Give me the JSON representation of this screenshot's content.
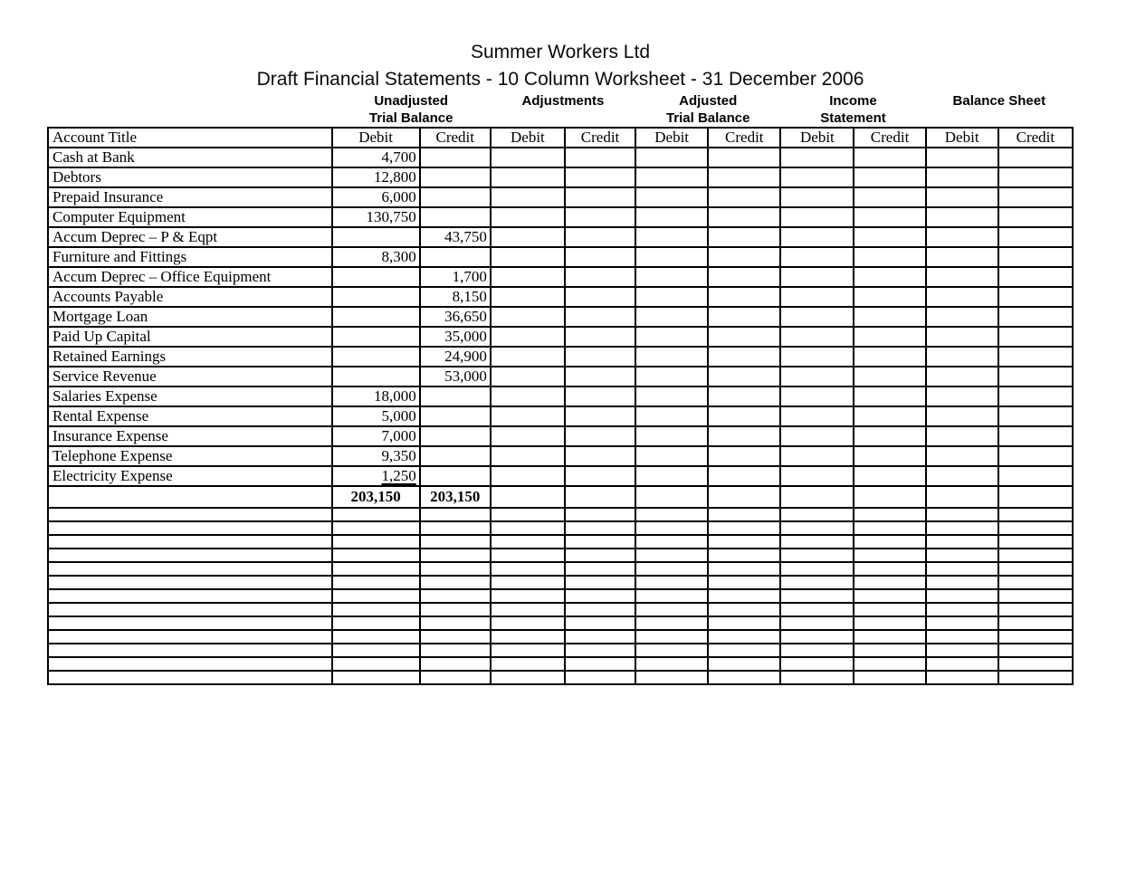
{
  "page": {
    "title": "Summer Workers Ltd",
    "subtitle": "Draft Financial Statements - 10 Column Worksheet - 31 December 2006"
  },
  "worksheet": {
    "section_headers": [
      {
        "line1": "Unadjusted",
        "line2": "Trial Balance"
      },
      {
        "line1": "Adjustments",
        "line2": ""
      },
      {
        "line1": "Adjusted",
        "line2": "Trial Balance"
      },
      {
        "line1": "Income",
        "line2": "Statement"
      },
      {
        "line1": "Balance Sheet",
        "line2": ""
      }
    ],
    "account_title_header": "Account Title",
    "column_headers": [
      "Debit",
      "Credit",
      "Debit",
      "Credit",
      "Debit",
      "Credit",
      "Debit",
      "Credit",
      "Debit",
      "Credit"
    ],
    "rows": [
      {
        "account": "Cash at Bank",
        "cells": [
          "4,700",
          "",
          "",
          "",
          "",
          "",
          "",
          "",
          "",
          ""
        ]
      },
      {
        "account": "Debtors",
        "cells": [
          "12,800",
          "",
          "",
          "",
          "",
          "",
          "",
          "",
          "",
          ""
        ]
      },
      {
        "account": "Prepaid Insurance",
        "cells": [
          "6,000",
          "",
          "",
          "",
          "",
          "",
          "",
          "",
          "",
          ""
        ]
      },
      {
        "account": "Computer Equipment",
        "cells": [
          "130,750",
          "",
          "",
          "",
          "",
          "",
          "",
          "",
          "",
          ""
        ]
      },
      {
        "account": "Accum Deprec – P & Eqpt",
        "cells": [
          "",
          "43,750",
          "",
          "",
          "",
          "",
          "",
          "",
          "",
          ""
        ]
      },
      {
        "account": "Furniture and Fittings",
        "cells": [
          "8,300",
          "",
          "",
          "",
          "",
          "",
          "",
          "",
          "",
          ""
        ]
      },
      {
        "account": "Accum Deprec – Office Equipment",
        "cells": [
          "",
          "1,700",
          "",
          "",
          "",
          "",
          "",
          "",
          "",
          ""
        ]
      },
      {
        "account": "Accounts Payable",
        "cells": [
          "",
          "8,150",
          "",
          "",
          "",
          "",
          "",
          "",
          "",
          ""
        ]
      },
      {
        "account": "Mortgage Loan",
        "cells": [
          "",
          "36,650",
          "",
          "",
          "",
          "",
          "",
          "",
          "",
          ""
        ]
      },
      {
        "account": "Paid Up Capital",
        "cells": [
          "",
          "35,000",
          "",
          "",
          "",
          "",
          "",
          "",
          "",
          ""
        ]
      },
      {
        "account": "Retained Earnings",
        "cells": [
          "",
          "24,900",
          "",
          "",
          "",
          "",
          "",
          "",
          "",
          ""
        ]
      },
      {
        "account": "Service Revenue",
        "cells": [
          "",
          "53,000",
          "",
          "",
          "",
          "",
          "",
          "",
          "",
          ""
        ]
      },
      {
        "account": "Salaries Expense",
        "cells": [
          "18,000",
          "",
          "",
          "",
          "",
          "",
          "",
          "",
          "",
          ""
        ]
      },
      {
        "account": "Rental Expense",
        "cells": [
          "5,000",
          "",
          "",
          "",
          "",
          "",
          "",
          "",
          "",
          ""
        ]
      },
      {
        "account": "Insurance Expense",
        "cells": [
          "7,000",
          "",
          "",
          "",
          "",
          "",
          "",
          "",
          "",
          ""
        ]
      },
      {
        "account": "Telephone Expense",
        "cells": [
          "9,350",
          "",
          "",
          "",
          "",
          "",
          "",
          "",
          "",
          ""
        ]
      },
      {
        "account": "Electricity Expense",
        "cells": [
          "1,250",
          "",
          "",
          "",
          "",
          "",
          "",
          "",
          "",
          ""
        ],
        "underline": [
          0
        ]
      }
    ],
    "total_row": {
      "account": "",
      "cells": [
        "203,150",
        "203,150",
        "",
        "",
        "",
        "",
        "",
        "",
        "",
        ""
      ]
    },
    "empty_row_count": 13,
    "colors": {
      "text": "#000000",
      "background": "#ffffff",
      "grid": "#000000"
    }
  }
}
